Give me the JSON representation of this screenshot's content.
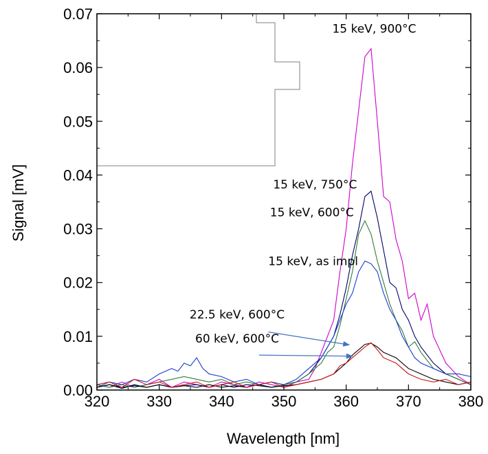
{
  "chart_data": {
    "type": "line",
    "title": "",
    "xlabel": "Wavelength [nm]",
    "ylabel": "Signal [mV]",
    "xlim": [
      320,
      380
    ],
    "ylim": [
      0.0,
      0.07
    ],
    "x_ticks": [
      320,
      330,
      340,
      350,
      360,
      370,
      380
    ],
    "x_tick_labels": [
      "320",
      "330",
      "340",
      "350",
      "360",
      "370",
      "380"
    ],
    "y_ticks": [
      0.0,
      0.01,
      0.02,
      0.03,
      0.04,
      0.05,
      0.06,
      0.07
    ],
    "y_tick_labels": [
      "0.00",
      "0.01",
      "0.02",
      "0.03",
      "0.04",
      "0.05",
      "0.06",
      "0.07"
    ],
    "grid": false,
    "series": [
      {
        "name": "15 keV, 900°C",
        "color": "#cc00cc",
        "x": [
          320,
          322,
          324,
          326,
          328,
          330,
          332,
          334,
          336,
          338,
          340,
          342,
          344,
          346,
          348,
          350,
          352,
          354,
          355,
          356,
          357,
          358,
          359,
          360,
          361,
          362,
          363,
          364,
          365,
          366,
          367,
          368,
          369,
          370,
          371,
          372,
          373,
          374,
          376,
          378,
          380
        ],
        "y": [
          0.001,
          0.0005,
          0.0015,
          0.0005,
          0.001,
          0.002,
          0.0005,
          0.0015,
          0.001,
          0.0005,
          0.0015,
          0.001,
          0.0005,
          0.0015,
          0.001,
          0.0005,
          0.0015,
          0.002,
          0.004,
          0.007,
          0.01,
          0.013,
          0.022,
          0.03,
          0.042,
          0.052,
          0.062,
          0.0635,
          0.05,
          0.036,
          0.035,
          0.028,
          0.024,
          0.017,
          0.018,
          0.013,
          0.016,
          0.01,
          0.005,
          0.0025,
          0.001
        ]
      },
      {
        "name": "15 keV, 750°C",
        "color": "#000066",
        "x": [
          320,
          322,
          324,
          326,
          328,
          330,
          332,
          334,
          336,
          338,
          340,
          342,
          344,
          346,
          348,
          350,
          352,
          354,
          356,
          357,
          358,
          359,
          360,
          361,
          362,
          363,
          364,
          365,
          366,
          367,
          368,
          369,
          370,
          371,
          372,
          374,
          376,
          378,
          380
        ],
        "y": [
          0.0005,
          0.001,
          0.0003,
          0.001,
          0.0005,
          0.001,
          0.0005,
          0.0008,
          0.001,
          0.0005,
          0.001,
          0.0005,
          0.001,
          0.0008,
          0.0005,
          0.001,
          0.0015,
          0.003,
          0.006,
          0.008,
          0.01,
          0.014,
          0.019,
          0.025,
          0.03,
          0.036,
          0.037,
          0.032,
          0.026,
          0.02,
          0.019,
          0.015,
          0.013,
          0.01,
          0.008,
          0.005,
          0.003,
          0.002,
          0.001
        ]
      },
      {
        "name": "15 keV, 600°C",
        "color": "#2e7d32",
        "x": [
          320,
          322,
          324,
          326,
          328,
          330,
          332,
          334,
          336,
          338,
          340,
          342,
          344,
          346,
          348,
          350,
          352,
          354,
          356,
          357,
          358,
          359,
          360,
          361,
          362,
          363,
          364,
          365,
          366,
          367,
          368,
          369,
          370,
          371,
          372,
          374,
          376,
          378,
          380
        ],
        "y": [
          0.001,
          0.0005,
          0.001,
          0.0005,
          0.001,
          0.0015,
          0.002,
          0.0025,
          0.002,
          0.0015,
          0.002,
          0.001,
          0.0015,
          0.001,
          0.0005,
          0.001,
          0.0015,
          0.003,
          0.005,
          0.007,
          0.008,
          0.012,
          0.017,
          0.022,
          0.029,
          0.0315,
          0.029,
          0.024,
          0.02,
          0.016,
          0.013,
          0.011,
          0.008,
          0.009,
          0.007,
          0.004,
          0.003,
          0.002,
          0.001
        ]
      },
      {
        "name": "15 keV, as impl",
        "color": "#1a3ccc",
        "x": [
          320,
          322,
          324,
          326,
          328,
          330,
          332,
          333,
          334,
          335,
          336,
          337,
          338,
          340,
          342,
          344,
          346,
          348,
          350,
          352,
          354,
          356,
          357,
          358,
          359,
          360,
          361,
          362,
          363,
          364,
          365,
          366,
          367,
          368,
          369,
          370,
          371,
          372,
          374,
          376,
          378,
          380
        ],
        "y": [
          0.0005,
          0.0015,
          0.001,
          0.002,
          0.0015,
          0.003,
          0.004,
          0.0035,
          0.005,
          0.0045,
          0.006,
          0.004,
          0.003,
          0.0025,
          0.0015,
          0.002,
          0.001,
          0.0015,
          0.001,
          0.002,
          0.004,
          0.006,
          0.008,
          0.01,
          0.013,
          0.016,
          0.018,
          0.022,
          0.024,
          0.0235,
          0.022,
          0.018,
          0.015,
          0.013,
          0.01,
          0.008,
          0.006,
          0.005,
          0.004,
          0.003,
          0.003,
          0.0025
        ]
      },
      {
        "name": "22.5 keV, 600°C",
        "color": "#000000",
        "x": [
          320,
          322,
          324,
          326,
          328,
          330,
          332,
          334,
          336,
          338,
          340,
          342,
          344,
          346,
          348,
          350,
          352,
          354,
          356,
          358,
          359,
          360,
          361,
          362,
          363,
          364,
          365,
          366,
          368,
          370,
          372,
          374,
          376,
          378,
          380
        ],
        "y": [
          0.0005,
          0.001,
          0.0005,
          0.0008,
          0.0005,
          0.001,
          0.0005,
          0.0008,
          0.0005,
          0.001,
          0.0005,
          0.0008,
          0.0005,
          0.001,
          0.0005,
          0.0008,
          0.001,
          0.0015,
          0.002,
          0.003,
          0.004,
          0.005,
          0.0065,
          0.0075,
          0.0085,
          0.0087,
          0.008,
          0.007,
          0.006,
          0.004,
          0.003,
          0.002,
          0.0015,
          0.001,
          0.0015
        ]
      },
      {
        "name": "60 keV, 600°C",
        "color": "#cc1111",
        "x": [
          320,
          322,
          324,
          326,
          328,
          330,
          332,
          334,
          336,
          338,
          340,
          342,
          344,
          346,
          348,
          350,
          352,
          354,
          356,
          358,
          359,
          360,
          361,
          362,
          363,
          364,
          365,
          366,
          368,
          370,
          372,
          374,
          376,
          378,
          380
        ],
        "y": [
          0.001,
          0.0015,
          0.0005,
          0.002,
          0.001,
          0.0015,
          0.0005,
          0.001,
          0.0015,
          0.0005,
          0.001,
          0.0015,
          0.0005,
          0.001,
          0.0015,
          0.0005,
          0.001,
          0.0015,
          0.002,
          0.003,
          0.0045,
          0.005,
          0.006,
          0.007,
          0.008,
          0.0088,
          0.0075,
          0.006,
          0.005,
          0.003,
          0.002,
          0.0015,
          0.002,
          0.001,
          0.0015
        ]
      }
    ],
    "annotations": [
      {
        "text": "15 keV, 900°C",
        "x": 364.5,
        "y": 0.0665
      },
      {
        "text": "15 keV, 750°C",
        "x": 355,
        "y": 0.0375
      },
      {
        "text": "15 keV, 600°C",
        "x": 354.5,
        "y": 0.0323
      },
      {
        "text": "15 keV, as impl",
        "x": 354.7,
        "y": 0.0232
      },
      {
        "text": "22.5 keV, 600°C",
        "x": 342.5,
        "y": 0.0133
      },
      {
        "text": "60 keV, 600°C",
        "x": 342.5,
        "y": 0.0088
      }
    ],
    "arrows": [
      {
        "from": [
          347.5,
          0.0108
        ],
        "to": [
          360.5,
          0.0084
        ],
        "color": "#4472c4"
      },
      {
        "from": [
          346.0,
          0.0065
        ],
        "to": [
          361.0,
          0.0063
        ],
        "color": "#4472c4"
      }
    ]
  }
}
